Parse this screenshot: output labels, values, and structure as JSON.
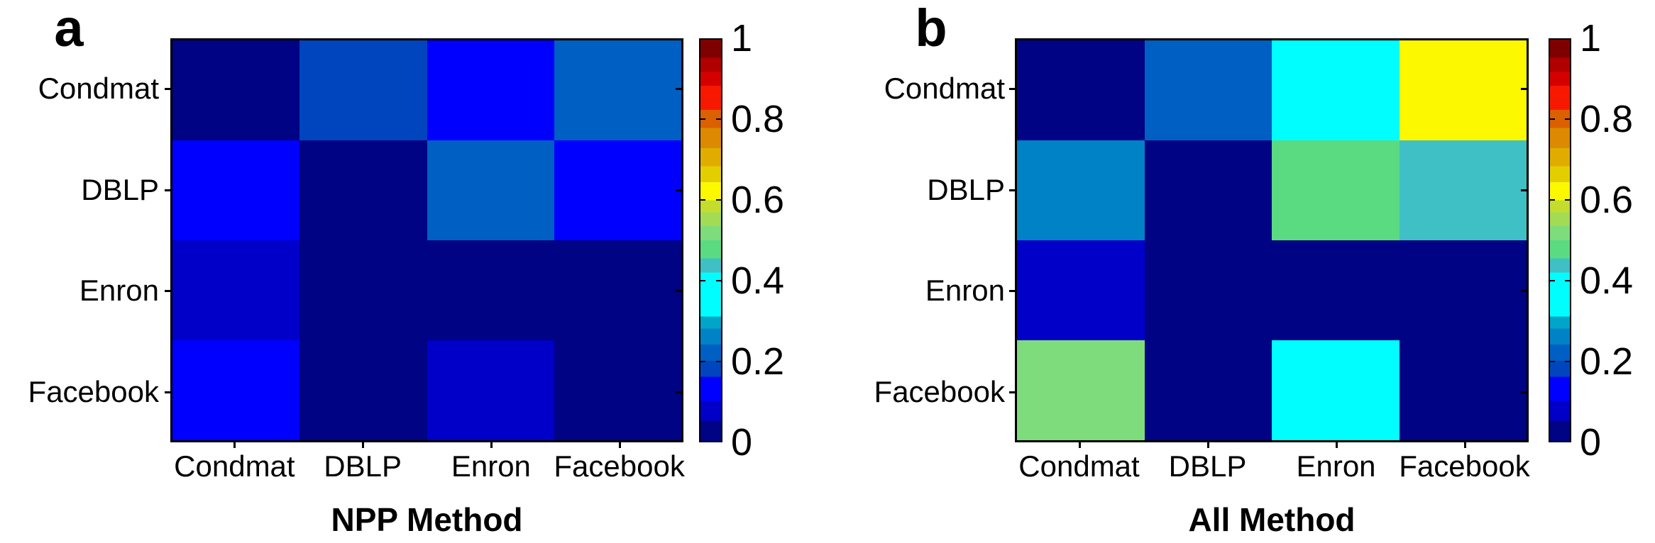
{
  "figure": {
    "background": "#ffffff",
    "axis_color": "#000000"
  },
  "chart_data": [
    {
      "type": "heatmap",
      "panel_letter": "a",
      "title": "NPP Method",
      "rows": [
        "Condmat",
        "DBLP",
        "Enron",
        "Facebook"
      ],
      "cols": [
        "Condmat",
        "DBLP",
        "Enron",
        "Facebook"
      ],
      "values": [
        [
          0.02,
          0.18,
          0.13,
          0.22
        ],
        [
          0.13,
          0.02,
          0.22,
          0.13
        ],
        [
          0.08,
          0.02,
          0.02,
          0.02
        ],
        [
          0.13,
          0.02,
          0.08,
          0.02
        ]
      ],
      "cell_colors": [
        [
          "#000383",
          "#0045BE",
          "#0000FE",
          "#005FC2"
        ],
        [
          "#0000FE",
          "#000383",
          "#005FC2",
          "#0000FE"
        ],
        [
          "#0000C8",
          "#000383",
          "#000383",
          "#000383"
        ],
        [
          "#0000FE",
          "#000383",
          "#0000C8",
          "#000383"
        ]
      ],
      "colorbar": {
        "min": 0,
        "max": 1,
        "tick_values": [
          0,
          0.2,
          0.4,
          0.6,
          0.8,
          1
        ],
        "tick_labels": [
          "0",
          "0.2",
          "0.4",
          "0.6",
          "0.8",
          "1"
        ]
      }
    },
    {
      "type": "heatmap",
      "panel_letter": "b",
      "title": "All Method",
      "rows": [
        "Condmat",
        "DBLP",
        "Enron",
        "Facebook"
      ],
      "cols": [
        "Condmat",
        "DBLP",
        "Enron",
        "Facebook"
      ],
      "values": [
        [
          0.02,
          0.22,
          0.38,
          0.62
        ],
        [
          0.26,
          0.02,
          0.48,
          0.44
        ],
        [
          0.08,
          0.02,
          0.02,
          0.02
        ],
        [
          0.52,
          0.02,
          0.38,
          0.02
        ]
      ],
      "cell_colors": [
        [
          "#000383",
          "#005FC2",
          "#00FEFE",
          "#FCF800"
        ],
        [
          "#0082C6",
          "#000383",
          "#5BDB81",
          "#3FC0C5"
        ],
        [
          "#0000C8",
          "#000383",
          "#000383",
          "#000383"
        ],
        [
          "#7EDC7D",
          "#000383",
          "#00FEFE",
          "#000383"
        ]
      ],
      "colorbar": {
        "min": 0,
        "max": 1,
        "tick_values": [
          0,
          0.2,
          0.4,
          0.6,
          0.8,
          1
        ],
        "tick_labels": [
          "0",
          "0.2",
          "0.4",
          "0.6",
          "0.8",
          "1"
        ]
      }
    }
  ],
  "colormap_stops": [
    {
      "color": "#000383",
      "to": 0.05
    },
    {
      "color": "#0000C8",
      "to": 0.1
    },
    {
      "color": "#0000FE",
      "to": 0.16
    },
    {
      "color": "#0045BE",
      "to": 0.2
    },
    {
      "color": "#005FC2",
      "to": 0.24
    },
    {
      "color": "#0082C6",
      "to": 0.28
    },
    {
      "color": "#00A5C8",
      "to": 0.31
    },
    {
      "color": "#00FEFE",
      "to": 0.42
    },
    {
      "color": "#3FC0C5",
      "to": 0.455
    },
    {
      "color": "#5BDB81",
      "to": 0.5
    },
    {
      "color": "#7EDC7D",
      "to": 0.535
    },
    {
      "color": "#A2DC55",
      "to": 0.57
    },
    {
      "color": "#C3DC2E",
      "to": 0.6
    },
    {
      "color": "#FCF800",
      "to": 0.645
    },
    {
      "color": "#E3CF00",
      "to": 0.685
    },
    {
      "color": "#E0AC00",
      "to": 0.73
    },
    {
      "color": "#DC8A00",
      "to": 0.78
    },
    {
      "color": "#DA6000",
      "to": 0.825
    },
    {
      "color": "#F81800",
      "to": 0.885
    },
    {
      "color": "#D40000",
      "to": 0.92
    },
    {
      "color": "#B00000",
      "to": 0.955
    },
    {
      "color": "#7F0000",
      "to": 1.0
    }
  ]
}
